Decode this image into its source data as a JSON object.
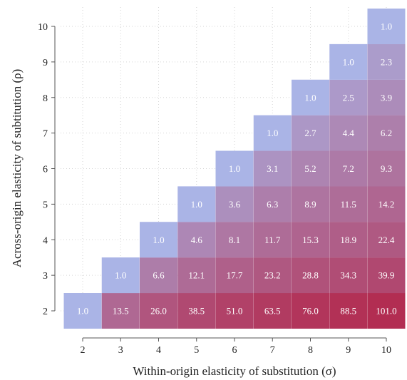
{
  "chart_data": {
    "type": "heatmap",
    "title": "",
    "xlabel": "Within-origin elasticity of substitution (σ)",
    "ylabel": "Across-origin elasticity of subtitution (ρ)",
    "x": [
      2,
      3,
      4,
      5,
      6,
      7,
      8,
      9,
      10
    ],
    "y": [
      2,
      3,
      4,
      5,
      6,
      7,
      8,
      9,
      10
    ],
    "xlim": [
      2,
      10
    ],
    "ylim": [
      2,
      10
    ],
    "grid": true,
    "colorscale": {
      "low": "#aab4e6",
      "high": "#b22d52"
    },
    "cells": [
      {
        "x": 2,
        "y": 2,
        "value": 1.0,
        "label": "1.0"
      },
      {
        "x": 3,
        "y": 2,
        "value": 13.5,
        "label": "13.5"
      },
      {
        "x": 4,
        "y": 2,
        "value": 26.0,
        "label": "26.0"
      },
      {
        "x": 5,
        "y": 2,
        "value": 38.5,
        "label": "38.5"
      },
      {
        "x": 6,
        "y": 2,
        "value": 51.0,
        "label": "51.0"
      },
      {
        "x": 7,
        "y": 2,
        "value": 63.5,
        "label": "63.5"
      },
      {
        "x": 8,
        "y": 2,
        "value": 76.0,
        "label": "76.0"
      },
      {
        "x": 9,
        "y": 2,
        "value": 88.5,
        "label": "88.5"
      },
      {
        "x": 10,
        "y": 2,
        "value": 101.0,
        "label": "101.0"
      },
      {
        "x": 3,
        "y": 3,
        "value": 1.0,
        "label": "1.0"
      },
      {
        "x": 4,
        "y": 3,
        "value": 6.6,
        "label": "6.6"
      },
      {
        "x": 5,
        "y": 3,
        "value": 12.1,
        "label": "12.1"
      },
      {
        "x": 6,
        "y": 3,
        "value": 17.7,
        "label": "17.7"
      },
      {
        "x": 7,
        "y": 3,
        "value": 23.2,
        "label": "23.2"
      },
      {
        "x": 8,
        "y": 3,
        "value": 28.8,
        "label": "28.8"
      },
      {
        "x": 9,
        "y": 3,
        "value": 34.3,
        "label": "34.3"
      },
      {
        "x": 10,
        "y": 3,
        "value": 39.9,
        "label": "39.9"
      },
      {
        "x": 4,
        "y": 4,
        "value": 1.0,
        "label": "1.0"
      },
      {
        "x": 5,
        "y": 4,
        "value": 4.6,
        "label": "4.6"
      },
      {
        "x": 6,
        "y": 4,
        "value": 8.1,
        "label": "8.1"
      },
      {
        "x": 7,
        "y": 4,
        "value": 11.7,
        "label": "11.7"
      },
      {
        "x": 8,
        "y": 4,
        "value": 15.3,
        "label": "15.3"
      },
      {
        "x": 9,
        "y": 4,
        "value": 18.9,
        "label": "18.9"
      },
      {
        "x": 10,
        "y": 4,
        "value": 22.4,
        "label": "22.4"
      },
      {
        "x": 5,
        "y": 5,
        "value": 1.0,
        "label": "1.0"
      },
      {
        "x": 6,
        "y": 5,
        "value": 3.6,
        "label": "3.6"
      },
      {
        "x": 7,
        "y": 5,
        "value": 6.3,
        "label": "6.3"
      },
      {
        "x": 8,
        "y": 5,
        "value": 8.9,
        "label": "8.9"
      },
      {
        "x": 9,
        "y": 5,
        "value": 11.5,
        "label": "11.5"
      },
      {
        "x": 10,
        "y": 5,
        "value": 14.2,
        "label": "14.2"
      },
      {
        "x": 6,
        "y": 6,
        "value": 1.0,
        "label": "1.0"
      },
      {
        "x": 7,
        "y": 6,
        "value": 3.1,
        "label": "3.1"
      },
      {
        "x": 8,
        "y": 6,
        "value": 5.2,
        "label": "5.2"
      },
      {
        "x": 9,
        "y": 6,
        "value": 7.2,
        "label": "7.2"
      },
      {
        "x": 10,
        "y": 6,
        "value": 9.3,
        "label": "9.3"
      },
      {
        "x": 7,
        "y": 7,
        "value": 1.0,
        "label": "1.0"
      },
      {
        "x": 8,
        "y": 7,
        "value": 2.7,
        "label": "2.7"
      },
      {
        "x": 9,
        "y": 7,
        "value": 4.4,
        "label": "4.4"
      },
      {
        "x": 10,
        "y": 7,
        "value": 6.2,
        "label": "6.2"
      },
      {
        "x": 8,
        "y": 8,
        "value": 1.0,
        "label": "1.0"
      },
      {
        "x": 9,
        "y": 8,
        "value": 2.5,
        "label": "2.5"
      },
      {
        "x": 10,
        "y": 8,
        "value": 3.9,
        "label": "3.9"
      },
      {
        "x": 9,
        "y": 9,
        "value": 1.0,
        "label": "1.0"
      },
      {
        "x": 10,
        "y": 9,
        "value": 2.3,
        "label": "2.3"
      },
      {
        "x": 10,
        "y": 10,
        "value": 1.0,
        "label": "1.0"
      }
    ]
  }
}
